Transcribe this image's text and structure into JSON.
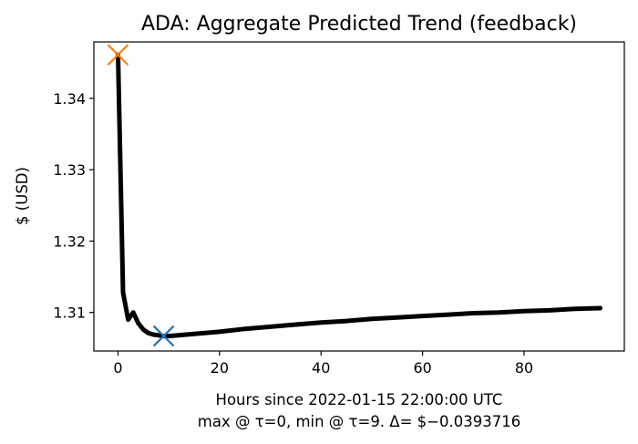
{
  "chart_data": {
    "type": "line",
    "title": "ADA: Aggregate Predicted Trend (feedback)",
    "xlabel": "Hours since 2022-01-15 22:00:00 UTC",
    "xlabel_line2": "max @ τ=0, min @ τ=9. Δ= $−0.0393716",
    "ylabel": "$ (USD)",
    "xlim": [
      -4.75,
      99.75
    ],
    "ylim": [
      1.3046,
      1.3479
    ],
    "xticks": [
      0,
      20,
      40,
      60,
      80
    ],
    "xtick_labels": [
      "0",
      "20",
      "40",
      "60",
      "80"
    ],
    "yticks": [
      1.31,
      1.32,
      1.33,
      1.34
    ],
    "ytick_labels": [
      "1.31",
      "1.32",
      "1.33",
      "1.34"
    ],
    "grid": false,
    "series": [
      {
        "color": "#000000",
        "x": [
          0,
          1,
          2,
          3,
          4,
          5,
          6,
          7,
          8,
          9,
          10,
          15,
          20,
          25,
          30,
          35,
          40,
          45,
          50,
          55,
          60,
          65,
          70,
          75,
          80,
          85,
          90,
          95
        ],
        "y": [
          1.3461,
          1.3128,
          1.309,
          1.31,
          1.3085,
          1.3076,
          1.3071,
          1.3069,
          1.3068,
          1.3067,
          1.3067,
          1.307,
          1.3073,
          1.3077,
          1.308,
          1.3083,
          1.3086,
          1.3088,
          1.3091,
          1.3093,
          1.3095,
          1.3097,
          1.3099,
          1.31,
          1.3102,
          1.3103,
          1.3105,
          1.3106
        ]
      }
    ],
    "markers": [
      {
        "label": "max",
        "x": 0,
        "y": 1.3461,
        "symbol": "x",
        "color": "#ff7f0e"
      },
      {
        "label": "min",
        "x": 9,
        "y": 1.3067,
        "symbol": "x",
        "color": "#1f77b4"
      }
    ]
  }
}
